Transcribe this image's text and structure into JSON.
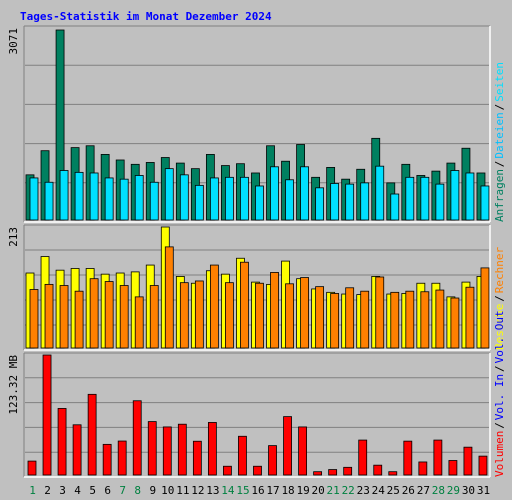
{
  "title": "Tages-Statistik im Monat Dezember 2024",
  "colors": {
    "background": "#c0c0c0",
    "frame": "#ffffff",
    "grid": "#808080",
    "title": "#0000ff",
    "weekday": "#000000",
    "weekend": "#008040",
    "anfragen": "#008060",
    "dateien": "#00c0ff",
    "seiten": "#00e0ff",
    "besuche": "#ffff00",
    "rechner": "#ff8000",
    "volumen_in": "#ff0000",
    "volumen_out": "#0000ff"
  },
  "chart_data": [
    {
      "type": "bar",
      "panel": "requests",
      "ymax_label": "3071",
      "ylim": [
        0,
        3071
      ],
      "grid": true,
      "categories": [
        "1",
        "2",
        "3",
        "4",
        "5",
        "6",
        "7",
        "8",
        "9",
        "10",
        "11",
        "12",
        "13",
        "14",
        "15",
        "16",
        "17",
        "18",
        "19",
        "20",
        "21",
        "22",
        "23",
        "24",
        "25",
        "26",
        "27",
        "28",
        "29",
        "30",
        "31"
      ],
      "legend": [
        {
          "label": "Anfragen",
          "color": "#008060"
        },
        {
          "label": "Dateien",
          "color": "#00c0ff"
        },
        {
          "label": "Seiten",
          "color": "#00e0ff"
        }
      ],
      "series": [
        {
          "name": "Anfragen",
          "values": [
            730,
            1120,
            3071,
            1170,
            1200,
            1060,
            970,
            900,
            930,
            1010,
            920,
            830,
            1060,
            880,
            910,
            760,
            1200,
            950,
            1220,
            690,
            850,
            660,
            820,
            1320,
            600,
            900,
            720,
            790,
            920,
            1160,
            760
          ]
        },
        {
          "name": "Seiten",
          "values": [
            680,
            610,
            800,
            770,
            760,
            680,
            660,
            720,
            610,
            830,
            730,
            560,
            680,
            690,
            690,
            550,
            860,
            650,
            860,
            520,
            590,
            580,
            600,
            870,
            420,
            690,
            690,
            580,
            800,
            760,
            550
          ]
        }
      ]
    },
    {
      "type": "bar",
      "panel": "visits",
      "ymax_label": "213",
      "ylim": [
        0,
        213
      ],
      "grid": true,
      "categories": [
        "1",
        "2",
        "3",
        "4",
        "5",
        "6",
        "7",
        "8",
        "9",
        "10",
        "11",
        "12",
        "13",
        "14",
        "15",
        "16",
        "17",
        "18",
        "19",
        "20",
        "21",
        "22",
        "23",
        "24",
        "25",
        "26",
        "27",
        "28",
        "29",
        "30",
        "31"
      ],
      "legend": [
        {
          "label": "Besuche",
          "color": "#ffff00"
        },
        {
          "label": "Rechner",
          "color": "#ff8000"
        }
      ],
      "series": [
        {
          "name": "Besuche",
          "values": [
            132,
            161,
            137,
            140,
            140,
            130,
            132,
            134,
            146,
            213,
            126,
            114,
            136,
            130,
            158,
            116,
            112,
            153,
            122,
            104,
            98,
            95,
            94,
            126,
            95,
            96,
            114,
            114,
            90,
            116,
            126
          ]
        },
        {
          "name": "Rechner",
          "values": [
            103,
            112,
            110,
            100,
            122,
            117,
            110,
            90,
            110,
            178,
            115,
            118,
            146,
            115,
            151,
            114,
            133,
            113,
            124,
            108,
            96,
            106,
            100,
            125,
            98,
            100,
            99,
            102,
            88,
            107,
            141
          ]
        }
      ]
    },
    {
      "type": "bar",
      "panel": "volume",
      "ymax_label": "123.32 MB",
      "ylim": [
        0,
        123.32
      ],
      "grid": true,
      "categories": [
        "1",
        "2",
        "3",
        "4",
        "5",
        "6",
        "7",
        "8",
        "9",
        "10",
        "11",
        "12",
        "13",
        "14",
        "15",
        "16",
        "17",
        "18",
        "19",
        "20",
        "21",
        "22",
        "23",
        "24",
        "25",
        "26",
        "27",
        "28",
        "29",
        "30",
        "31"
      ],
      "legend": [
        {
          "label": "Volumen",
          "color": "#ff0000"
        },
        {
          "label": "Vol. In",
          "color": "#0000ff"
        },
        {
          "label": "Vol. Out",
          "color": "#0000ff"
        }
      ],
      "series": [
        {
          "name": "Volumen",
          "values": [
            14.3,
            123.3,
            68.4,
            51.6,
            82.9,
            31.5,
            34.9,
            76.3,
            54.9,
            49.4,
            52.2,
            34.7,
            54.0,
            9.0,
            39.8,
            9.0,
            30.2,
            60.0,
            49.4,
            3.4,
            5.6,
            7.9,
            35.9,
            10.1,
            3.4,
            34.8,
            13.4,
            35.9,
            14.9,
            28.6,
            19.4
          ]
        },
        {
          "name": "Vol. In",
          "values": [
            0,
            0,
            0,
            0,
            0,
            0,
            0,
            0,
            0,
            0,
            0,
            0,
            0,
            0,
            0,
            0,
            0,
            0,
            0,
            0,
            0,
            0,
            0,
            0,
            0,
            0,
            0,
            0,
            0,
            0,
            0
          ]
        },
        {
          "name": "Vol. Out",
          "values": [
            0,
            0,
            0,
            0,
            0,
            0,
            0,
            0,
            0,
            0,
            0,
            0,
            0,
            0,
            0,
            0,
            0,
            0,
            0,
            0,
            0,
            0,
            0,
            0,
            0,
            0,
            0,
            0,
            0,
            0,
            0
          ]
        }
      ]
    }
  ],
  "weekend_days": [
    "1",
    "7",
    "8",
    "14",
    "15",
    "21",
    "22",
    "28",
    "29"
  ]
}
